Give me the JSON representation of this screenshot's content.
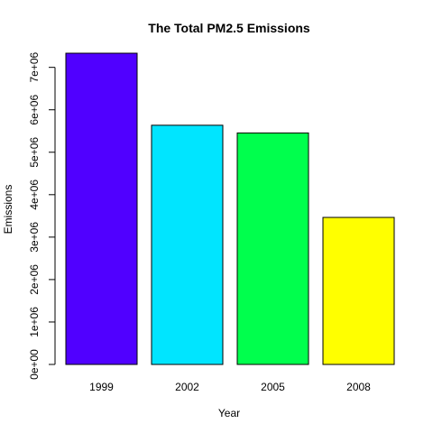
{
  "chart_data": {
    "type": "bar",
    "title": "The Total PM2.5 Emissions",
    "xlabel": "Year",
    "ylabel": "Emissions",
    "categories": [
      "1999",
      "2002",
      "2005",
      "2008"
    ],
    "values": [
      7332967,
      5635780,
      5454703,
      3464206
    ],
    "colors": [
      "#5000FF",
      "#00E5FF",
      "#00FF4D",
      "#FFFF00"
    ],
    "ylim": [
      0,
      7332967
    ],
    "yticks": [
      0,
      1000000,
      2000000,
      3000000,
      4000000,
      5000000,
      6000000,
      7000000
    ],
    "ytick_labels": [
      "0e+00",
      "1e+06",
      "2e+06",
      "3e+06",
      "4e+06",
      "5e+06",
      "6e+06",
      "7e+06"
    ],
    "grid": false,
    "legend": "none"
  }
}
